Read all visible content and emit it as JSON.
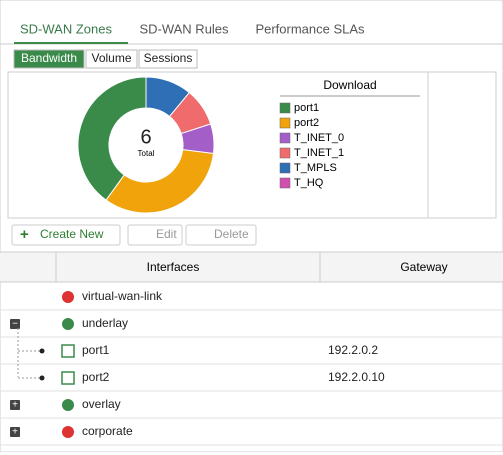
{
  "tabs": [
    "SD-WAN Zones",
    "SD-WAN Rules",
    "Performance SLAs"
  ],
  "subtabs": [
    "Bandwidth",
    "Volume",
    "Sessions"
  ],
  "chart_data": {
    "type": "pie",
    "title": "Download",
    "total": 6,
    "total_label": "Total",
    "categories": [
      "port1",
      "port2",
      "T_INET_0",
      "T_INET_1",
      "T_MPLS",
      "T_HQ"
    ],
    "values": [
      40,
      33,
      7,
      9,
      11,
      0
    ],
    "colors": [
      "#3a8a4a",
      "#f0a30a",
      "#a35fc7",
      "#f06b6b",
      "#2e6fb5",
      "#d04fb0"
    ]
  },
  "toolbar": [
    "Create New",
    "Edit",
    "Delete"
  ],
  "table": {
    "columns": [
      "Interfaces",
      "Gateway"
    ],
    "rows": [
      {
        "name": "virtual-wan-link"
      },
      {
        "name": "underlay"
      },
      {
        "name": "port1",
        "gateway": "192.2.0.2"
      },
      {
        "name": "port2",
        "gateway": "192.2.0.10"
      },
      {
        "name": "overlay"
      },
      {
        "name": "corporate"
      }
    ]
  }
}
